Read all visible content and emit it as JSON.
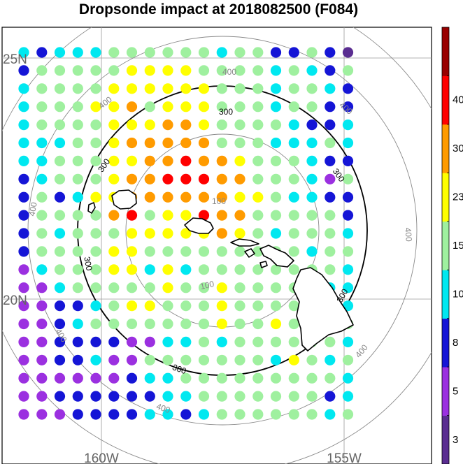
{
  "chart_data": {
    "type": "scatter",
    "title": "Dropsonde impact at 2018082500 (F084)",
    "xlabel": "",
    "ylabel": "",
    "axis_labels": {
      "lat_25": "25N",
      "lat_20": "20N",
      "lon_160": "160W",
      "lon_155": "155W"
    },
    "grid": true,
    "range_ring_labels": [
      "100",
      "300",
      "400"
    ],
    "colorbar": {
      "placement": "right",
      "tick_labels": [
        "3",
        "5",
        "8",
        "10",
        "15",
        "23",
        "30",
        "40"
      ],
      "colors": [
        "#5a2d91",
        "#9b30e0",
        "#1515d6",
        "#00e8f0",
        "#9ff09f",
        "#ffff00",
        "#ff9b00",
        "#ff0000",
        "#990000"
      ]
    },
    "colors": [
      "#5a2d91",
      "#9b30e0",
      "#1515d6",
      "#00e8f0",
      "#9ff09f",
      "#ffff00",
      "#ff9b00",
      "#ff0000",
      "#990000"
    ],
    "rows": [
      "3233344444434422420",
      "2444445555444434324",
      "3444455555544434432",
      "3444556455544434422",
      "3444455566544443223",
      "3334456666644433343",
      "3344455667665444322",
      "2344456677766444314",
      "2423556666665543322",
      "2444467455766444442",
      "2434445555565434443",
      "2444455444444444344",
      "1344455353444444443",
      "1134444454454444433",
      "1122345544454444443",
      "1123444444454454344",
      "1122221133434444443",
      "1122311444444435434",
      "1111112334444444443",
      "1122222233444444423",
      "1112222332344444434"
    ]
  }
}
